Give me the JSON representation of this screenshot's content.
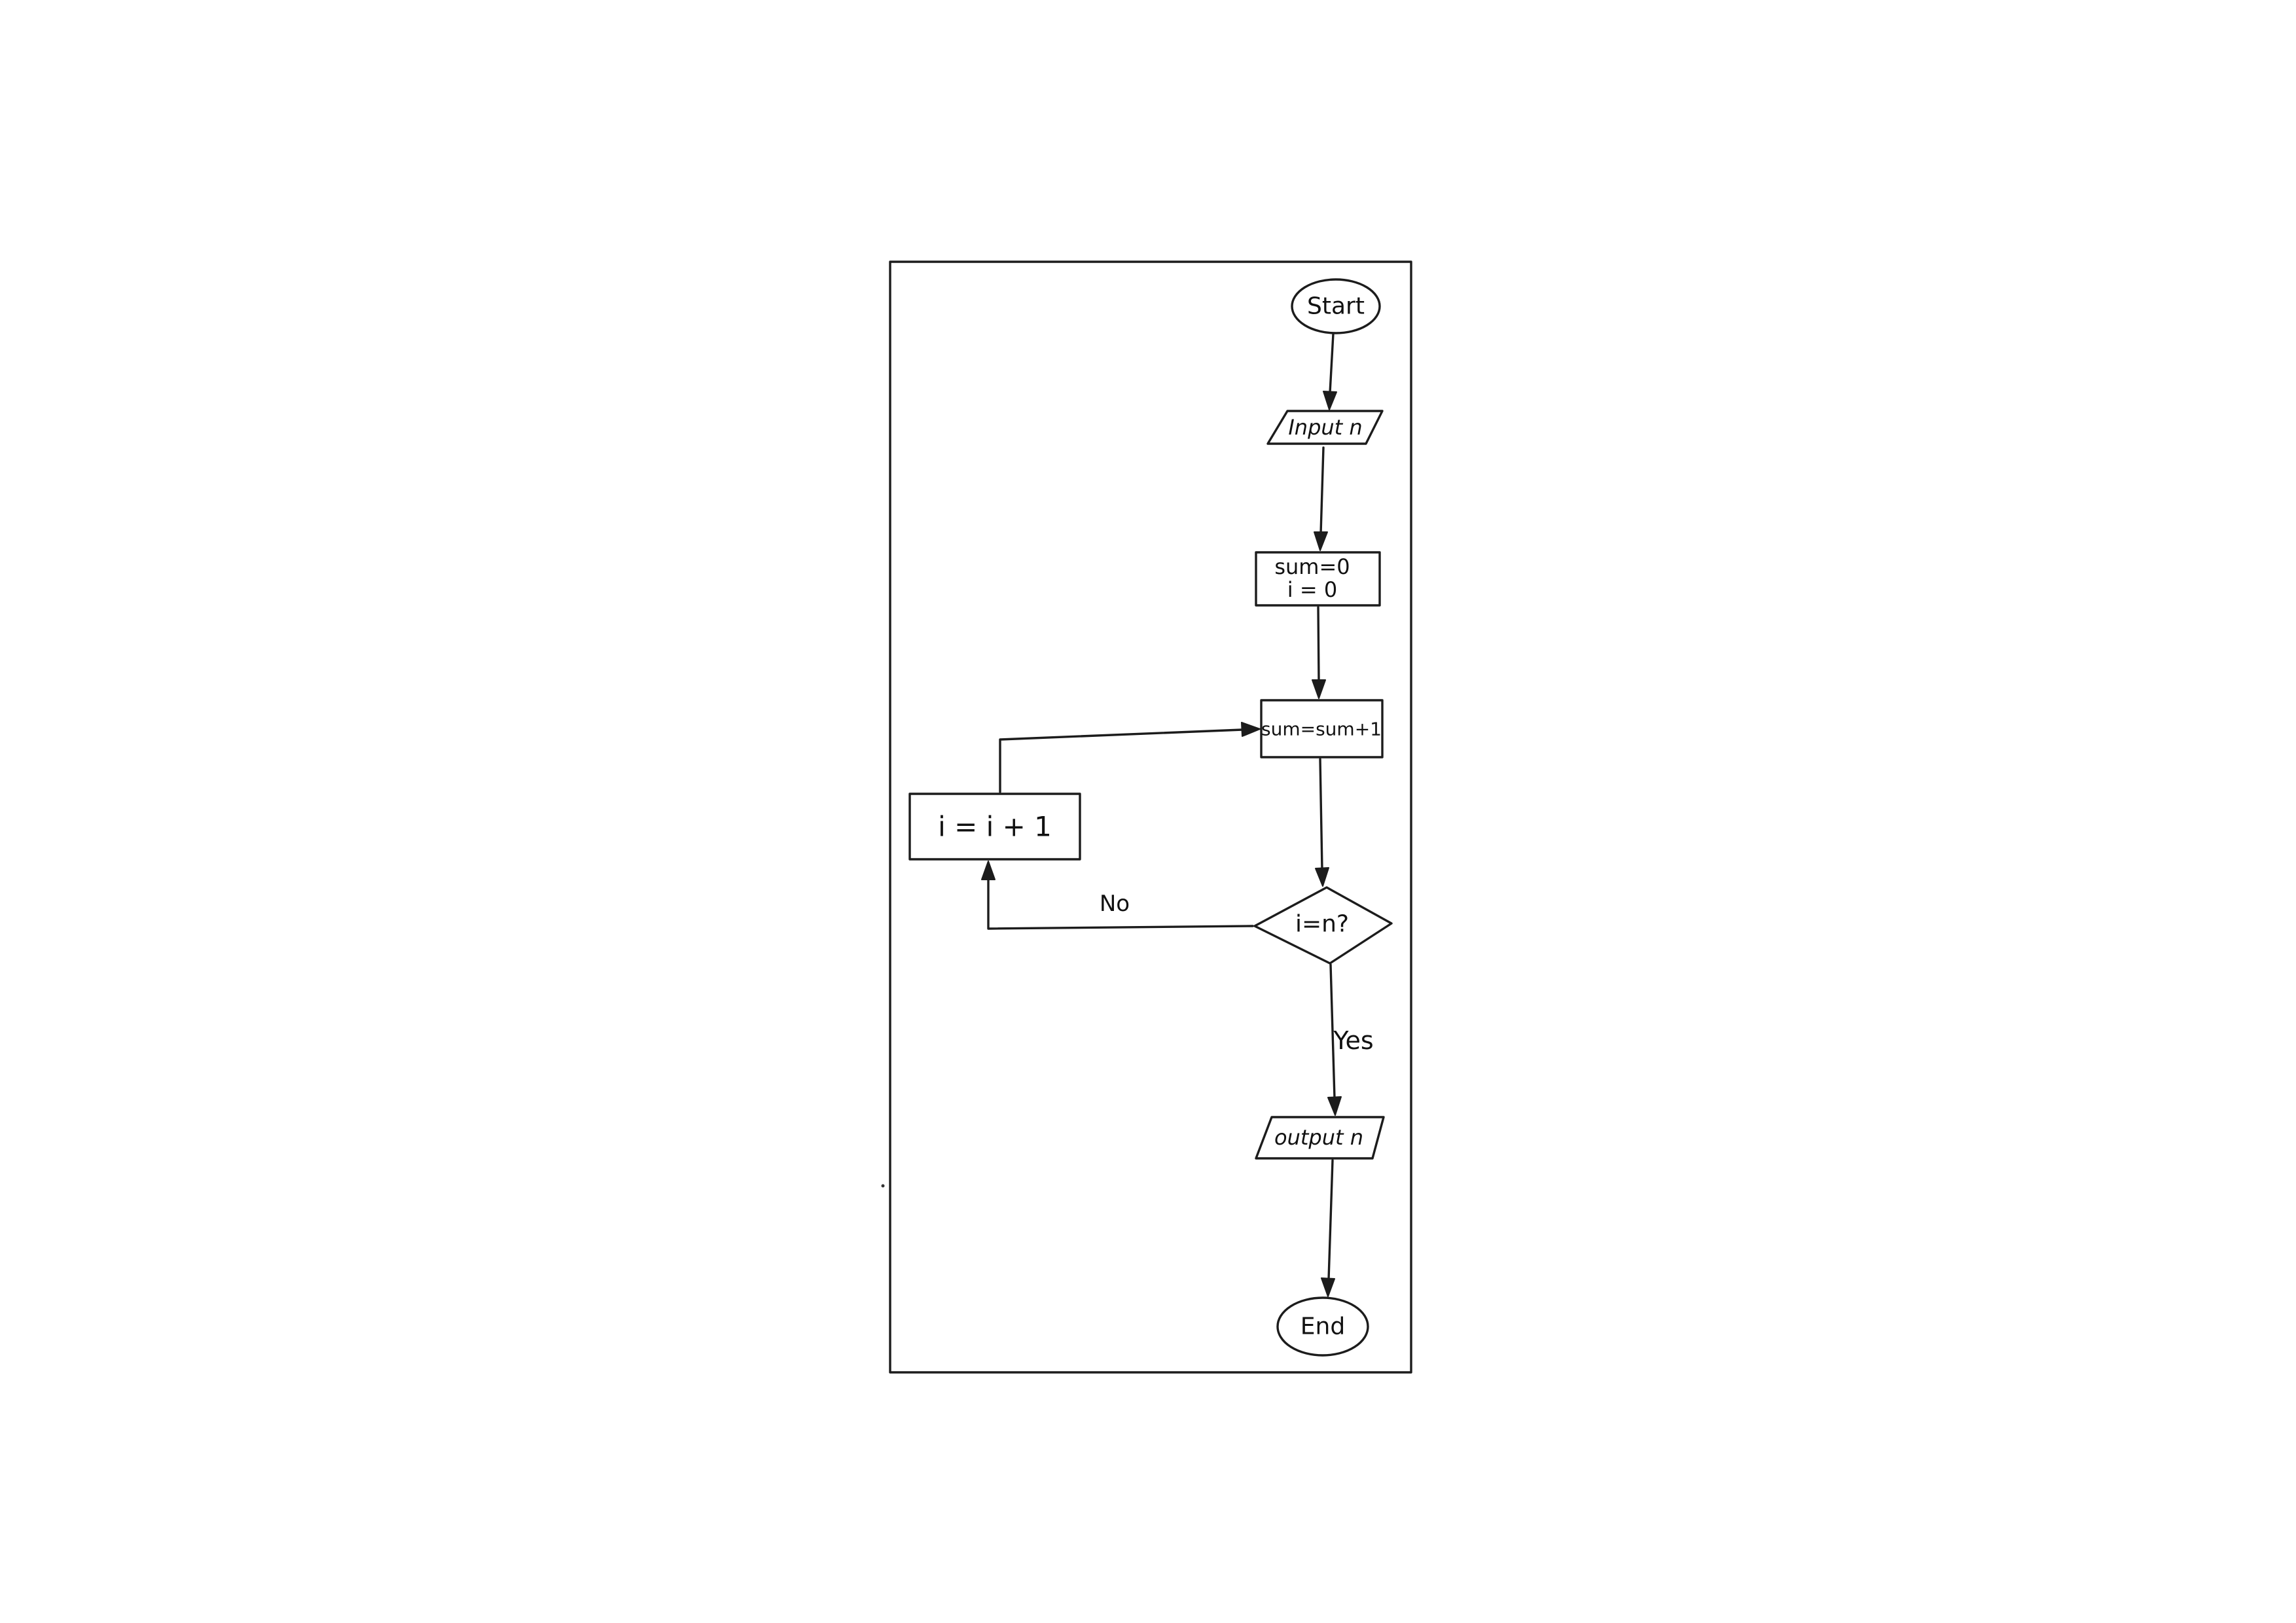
{
  "diagram": {
    "type": "flowchart",
    "nodes": {
      "start": {
        "shape": "terminal",
        "label": "Start"
      },
      "input": {
        "shape": "io",
        "label": "Input n"
      },
      "init": {
        "shape": "process",
        "label_line1": "sum=0",
        "label_line2": "i = 0"
      },
      "update_sum": {
        "shape": "process",
        "label": "sum=sum+1"
      },
      "decision": {
        "shape": "decision",
        "label": "i=n?"
      },
      "increment": {
        "shape": "process",
        "label": "i = i + 1"
      },
      "output": {
        "shape": "io",
        "label": "output n"
      },
      "end": {
        "shape": "terminal",
        "label": "End"
      }
    },
    "edges": [
      {
        "from": "start",
        "to": "input",
        "label": ""
      },
      {
        "from": "input",
        "to": "init",
        "label": ""
      },
      {
        "from": "init",
        "to": "update_sum",
        "label": ""
      },
      {
        "from": "update_sum",
        "to": "decision",
        "label": ""
      },
      {
        "from": "decision",
        "to": "increment",
        "label": "No"
      },
      {
        "from": "increment",
        "to": "update_sum",
        "label": ""
      },
      {
        "from": "decision",
        "to": "output",
        "label": "Yes"
      },
      {
        "from": "output",
        "to": "end",
        "label": ""
      }
    ],
    "edge_labels": {
      "no": "No",
      "yes": "Yes"
    },
    "stroke_color": "#1c1c1c",
    "background_color": "#ffffff"
  }
}
